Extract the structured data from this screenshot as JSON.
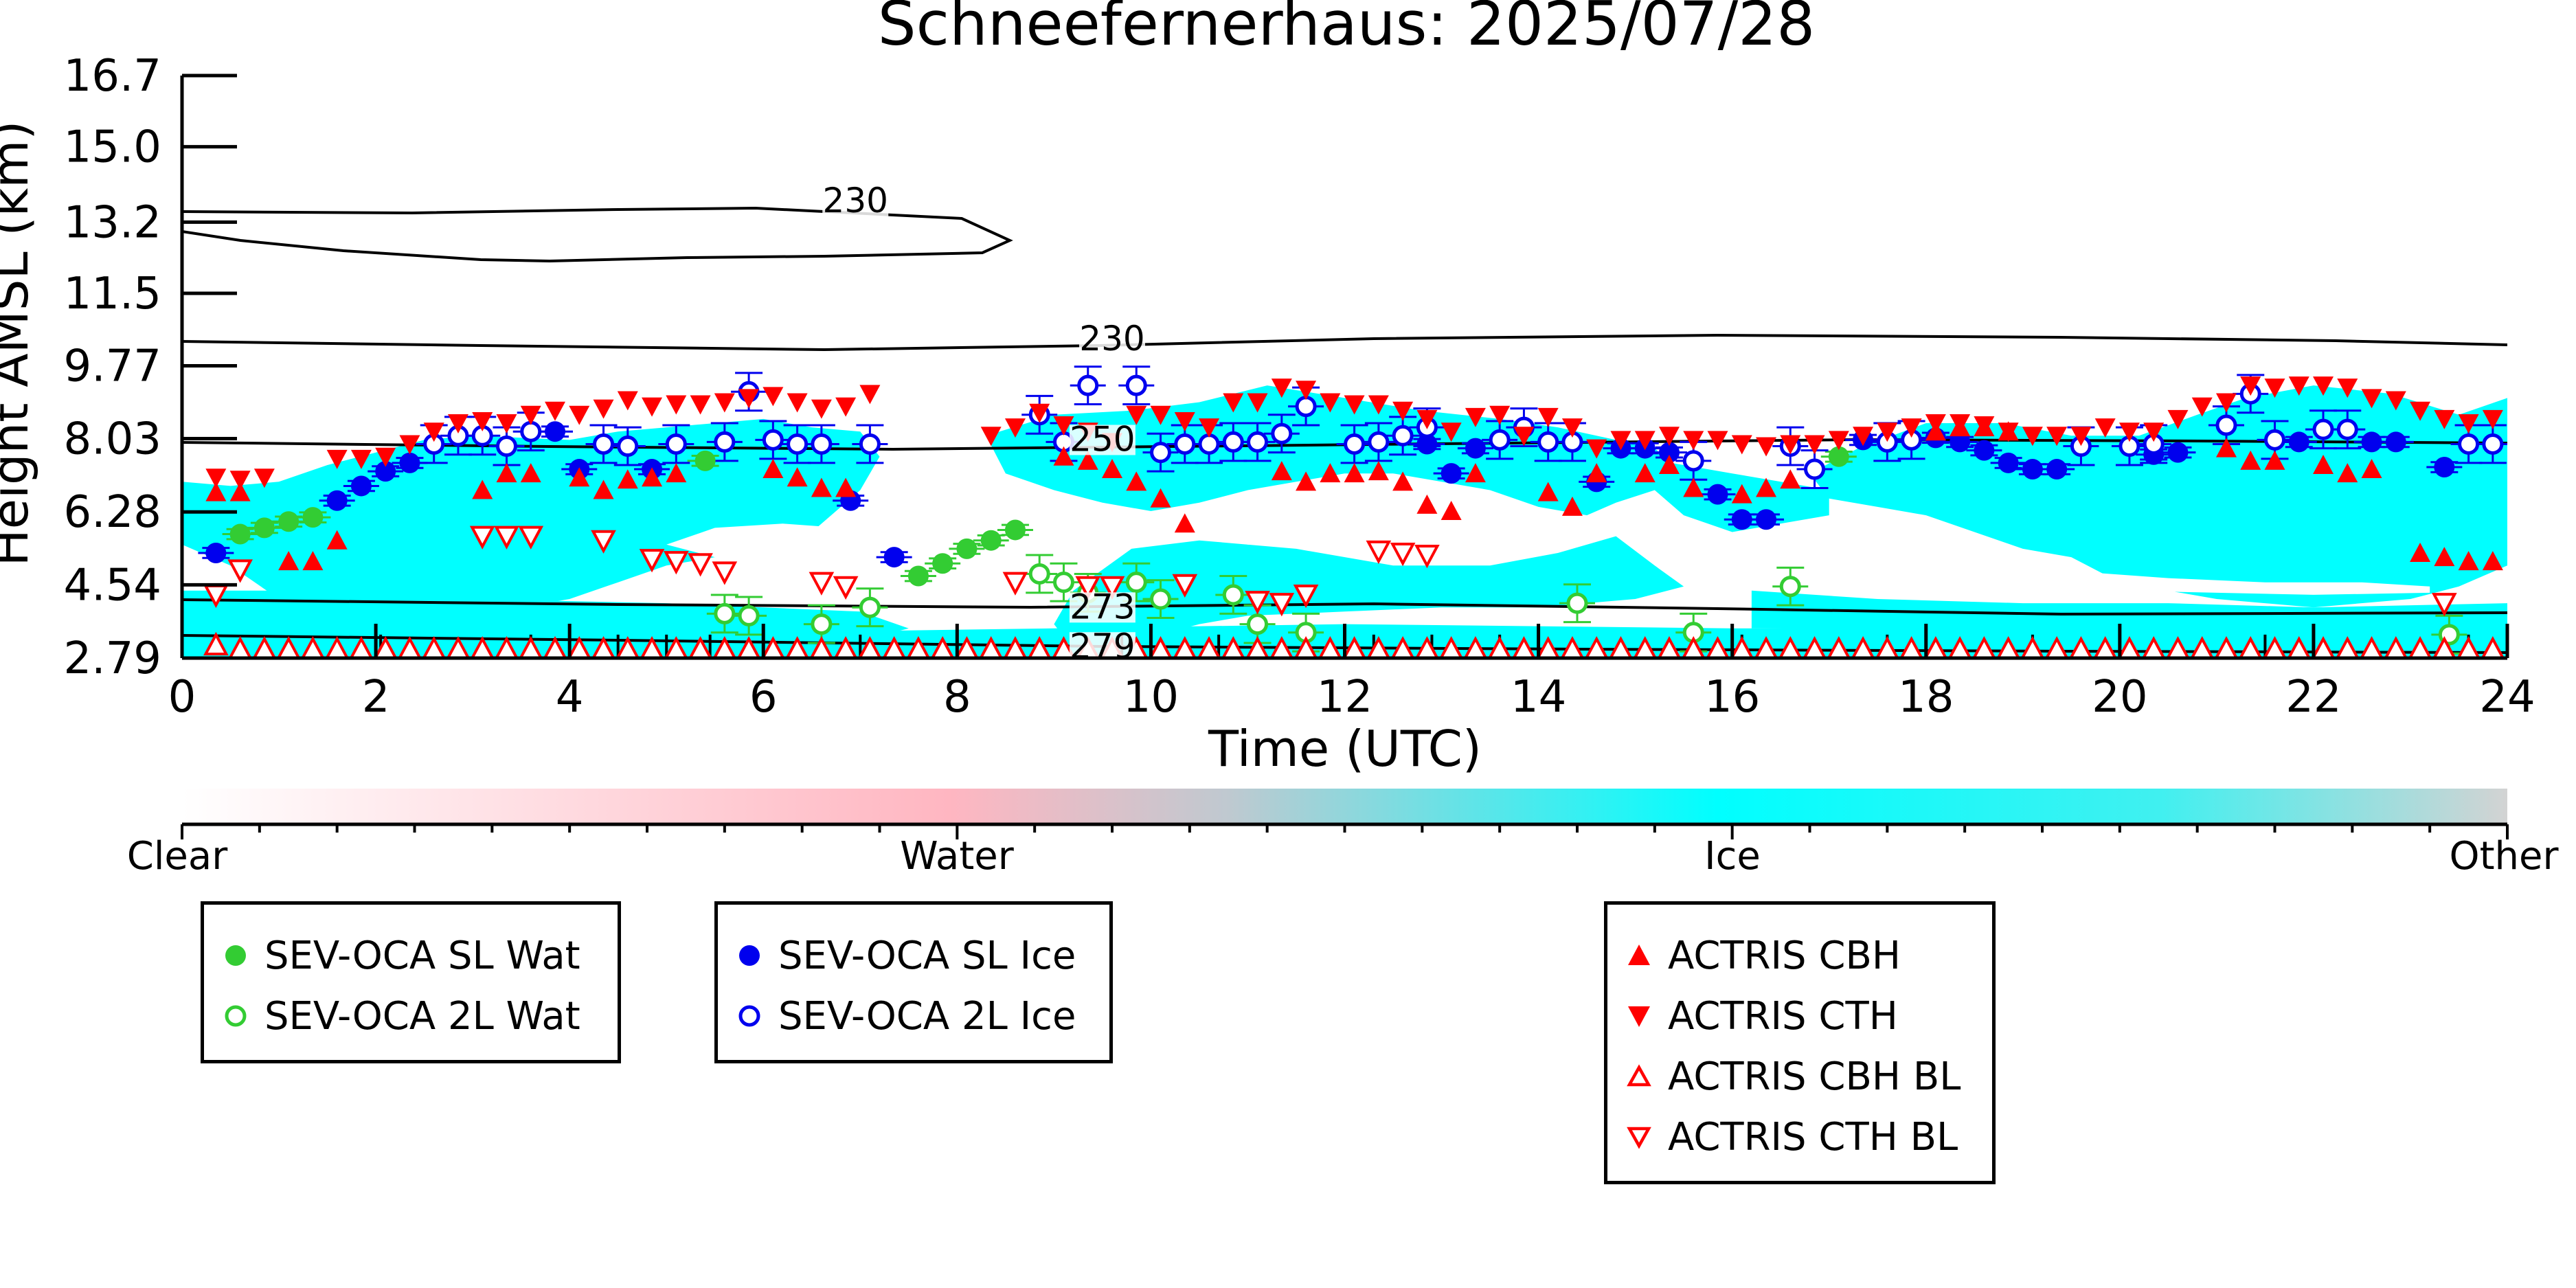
{
  "chart_data": {
    "type": "scatter",
    "title": "Schneefernerhaus: 2025/07/28",
    "xlabel": "Time (UTC)",
    "ylabel": "Height AMSL (km)",
    "xlim": [
      0,
      24
    ],
    "ylim": [
      2.79,
      16.7
    ],
    "xticks": [
      0,
      2,
      4,
      6,
      8,
      10,
      12,
      14,
      16,
      18,
      20,
      22,
      24
    ],
    "yticks": [
      2.79,
      4.54,
      6.28,
      8.03,
      9.77,
      11.5,
      13.2,
      15.0,
      16.7
    ],
    "ytick_labels": [
      "2.79",
      "4.54",
      "6.28",
      "8.03",
      "9.77",
      "11.5",
      "13.2",
      "15.0",
      "16.7"
    ],
    "colorbar": {
      "labels": [
        "Clear",
        "Water",
        "Ice",
        "Other"
      ],
      "colors": [
        "#ffffff",
        "#ffb6c1",
        "#00ffff",
        "#d3d3d3"
      ]
    },
    "cloud_fill_color": "#00ffff",
    "contours": [
      {
        "label": "230",
        "label_x": 6.95,
        "label_y": 13.6
      },
      {
        "label": "230",
        "label_x": 9.6,
        "label_y": 10.3
      },
      {
        "label": "250",
        "label_x": 9.5,
        "label_y": 7.9
      },
      {
        "label": "273",
        "label_x": 9.5,
        "label_y": 3.9
      },
      {
        "label": "279",
        "label_x": 9.5,
        "label_y": 2.95
      }
    ],
    "series": [
      {
        "name": "SEV-OCA SL Wat",
        "marker": "circle",
        "filled": true,
        "color": "#33cc33",
        "x": [
          0.6,
          0.85,
          1.1,
          1.35,
          5.4,
          7.6,
          7.85,
          8.1,
          8.35,
          8.6,
          17.1
        ],
        "y": [
          5.75,
          5.9,
          6.05,
          6.15,
          7.5,
          4.75,
          5.05,
          5.4,
          5.6,
          5.85,
          7.6
        ]
      },
      {
        "name": "SEV-OCA 2L Wat",
        "marker": "circle",
        "filled": false,
        "color": "#33cc33",
        "x": [
          5.6,
          5.85,
          6.6,
          7.1,
          8.85,
          9.1,
          9.35,
          9.85,
          10.1,
          10.85,
          11.1,
          11.6,
          14.4,
          15.6,
          16.6,
          23.4
        ],
        "y": [
          3.85,
          3.8,
          3.6,
          4.0,
          4.8,
          4.6,
          4.35,
          4.6,
          4.2,
          4.3,
          3.6,
          3.4,
          4.1,
          3.4,
          4.5,
          3.35
        ]
      },
      {
        "name": "SEV-OCA SL Ice",
        "marker": "circle",
        "filled": true,
        "color": "#0000ee",
        "x": [
          0.35,
          1.6,
          1.85,
          2.1,
          2.35,
          3.85,
          4.1,
          4.85,
          6.9,
          7.35,
          12.85,
          13.1,
          13.35,
          14.6,
          14.85,
          15.1,
          15.35,
          15.85,
          16.1,
          16.35,
          17.35,
          18.1,
          18.35,
          18.6,
          18.85,
          19.1,
          19.35,
          20.35,
          20.6,
          21.85,
          22.6,
          22.85,
          23.35
        ],
        "y": [
          5.3,
          6.55,
          6.9,
          7.25,
          7.45,
          8.2,
          7.3,
          7.3,
          6.55,
          5.2,
          7.9,
          7.2,
          7.8,
          7.0,
          7.8,
          7.8,
          7.7,
          6.7,
          6.1,
          6.1,
          8.0,
          8.05,
          7.95,
          7.75,
          7.45,
          7.3,
          7.3,
          7.65,
          7.7,
          7.95,
          7.95,
          7.95,
          7.35
        ]
      },
      {
        "name": "SEV-OCA 2L Ice",
        "marker": "circle",
        "filled": false,
        "color": "#0000ee",
        "x": [
          2.6,
          2.85,
          3.1,
          3.35,
          3.6,
          4.35,
          4.6,
          5.1,
          5.6,
          5.85,
          6.1,
          6.35,
          6.6,
          7.1,
          8.85,
          9.1,
          9.35,
          9.85,
          10.1,
          10.35,
          10.6,
          10.85,
          11.1,
          11.35,
          11.6,
          12.1,
          12.35,
          12.6,
          12.85,
          13.6,
          13.85,
          14.1,
          14.35,
          15.6,
          16.6,
          16.85,
          17.6,
          17.85,
          19.6,
          20.1,
          20.35,
          21.1,
          21.35,
          21.6,
          22.1,
          22.35,
          23.6,
          23.85
        ],
        "y": [
          7.9,
          8.1,
          8.1,
          7.85,
          8.2,
          7.9,
          7.85,
          7.9,
          7.95,
          9.15,
          8.0,
          7.9,
          7.9,
          7.9,
          8.6,
          7.95,
          9.3,
          9.3,
          7.7,
          7.9,
          7.9,
          7.95,
          7.95,
          8.15,
          8.8,
          7.9,
          7.95,
          8.1,
          8.3,
          8.0,
          8.3,
          7.95,
          7.95,
          7.5,
          7.85,
          7.3,
          7.95,
          8.0,
          7.85,
          7.85,
          7.9,
          8.35,
          9.1,
          8.0,
          8.25,
          8.25,
          7.9,
          7.9
        ]
      },
      {
        "name": "ACTRIS CBH",
        "marker": "triangle-up",
        "filled": true,
        "color": "#ff0000",
        "x": [
          0.35,
          0.6,
          1.1,
          1.35,
          1.6,
          3.1,
          3.35,
          3.6,
          4.1,
          4.35,
          4.6,
          4.85,
          5.1,
          6.1,
          6.35,
          6.6,
          6.85,
          9.1,
          9.35,
          9.6,
          9.85,
          10.1,
          10.35,
          11.35,
          11.6,
          11.85,
          12.1,
          12.35,
          12.6,
          12.85,
          13.1,
          13.35,
          14.1,
          14.35,
          14.6,
          15.1,
          15.35,
          15.6,
          16.1,
          16.35,
          16.6,
          18.1,
          18.35,
          18.6,
          18.85,
          21.1,
          21.35,
          21.6,
          22.1,
          22.35,
          22.6,
          23.1,
          23.35,
          23.6,
          23.85
        ],
        "y": [
          6.75,
          6.75,
          5.1,
          5.1,
          5.6,
          6.8,
          7.2,
          7.2,
          7.1,
          6.8,
          7.05,
          7.1,
          7.2,
          7.3,
          7.1,
          6.85,
          6.85,
          7.6,
          7.5,
          7.3,
          7.0,
          6.6,
          6.0,
          7.25,
          7.0,
          7.2,
          7.2,
          7.25,
          7.0,
          6.45,
          6.3,
          7.2,
          6.75,
          6.4,
          7.2,
          7.2,
          7.4,
          6.85,
          6.7,
          6.85,
          7.05,
          8.2,
          8.3,
          8.3,
          8.2,
          7.8,
          7.5,
          7.5,
          7.4,
          7.2,
          7.3,
          5.3,
          5.2,
          5.1,
          5.1
        ]
      },
      {
        "name": "ACTRIS CTH",
        "marker": "triangle-down",
        "filled": true,
        "color": "#ff0000",
        "x": [
          0.35,
          0.6,
          0.85,
          1.6,
          1.85,
          2.1,
          2.35,
          2.6,
          2.85,
          3.1,
          3.35,
          3.6,
          3.85,
          4.1,
          4.35,
          4.6,
          4.85,
          5.1,
          5.35,
          5.6,
          5.85,
          6.1,
          6.35,
          6.6,
          6.85,
          7.1,
          8.35,
          8.6,
          8.85,
          9.1,
          9.35,
          9.6,
          9.85,
          10.1,
          10.35,
          10.6,
          10.85,
          11.1,
          11.35,
          11.6,
          11.85,
          12.1,
          12.35,
          12.6,
          12.85,
          13.1,
          13.35,
          13.6,
          13.85,
          14.1,
          14.35,
          14.6,
          14.85,
          15.1,
          15.35,
          15.6,
          15.85,
          16.1,
          16.35,
          16.6,
          16.85,
          17.1,
          17.35,
          17.6,
          17.85,
          18.1,
          18.35,
          18.6,
          18.85,
          19.1,
          19.35,
          19.6,
          19.85,
          20.1,
          20.35,
          20.6,
          20.85,
          21.1,
          21.35,
          21.6,
          21.85,
          22.1,
          22.35,
          22.6,
          22.85,
          23.1,
          23.35,
          23.6,
          23.85
        ],
        "y": [
          7.1,
          7.05,
          7.1,
          7.55,
          7.55,
          7.6,
          7.9,
          8.2,
          8.4,
          8.45,
          8.4,
          8.6,
          8.7,
          8.6,
          8.75,
          8.95,
          8.8,
          8.85,
          8.85,
          8.9,
          9.0,
          9.05,
          8.9,
          8.75,
          8.8,
          9.1,
          8.1,
          8.3,
          8.65,
          8.35,
          8.2,
          7.95,
          8.6,
          8.6,
          8.45,
          8.3,
          8.9,
          8.9,
          9.25,
          9.2,
          8.9,
          8.85,
          8.85,
          8.7,
          8.5,
          8.2,
          8.55,
          8.6,
          8.1,
          8.55,
          8.3,
          7.8,
          8.0,
          8.0,
          8.1,
          8.0,
          8.0,
          7.9,
          7.85,
          7.9,
          7.9,
          8.0,
          8.1,
          8.2,
          8.3,
          8.4,
          8.4,
          8.35,
          8.2,
          8.1,
          8.1,
          8.1,
          8.3,
          8.2,
          8.2,
          8.5,
          8.8,
          8.9,
          9.3,
          9.25,
          9.3,
          9.3,
          9.25,
          9.0,
          8.95,
          8.7,
          8.5,
          8.4,
          8.5
        ]
      },
      {
        "name": "ACTRIS CBH BL",
        "marker": "triangle-up",
        "filled": false,
        "color": "#ff0000",
        "x": [
          0.35,
          0.6,
          0.85,
          1.1,
          1.35,
          1.6,
          1.85,
          2.1,
          2.35,
          2.6,
          2.85,
          3.1,
          3.35,
          3.6,
          3.85,
          4.1,
          4.35,
          4.6,
          4.85,
          5.1,
          5.35,
          5.6,
          5.85,
          6.1,
          6.35,
          6.6,
          6.85,
          7.1,
          7.35,
          7.6,
          7.85,
          8.1,
          8.35,
          8.6,
          8.85,
          9.1,
          9.35,
          9.6,
          9.85,
          10.1,
          10.35,
          10.6,
          10.85,
          11.1,
          11.35,
          11.6,
          11.85,
          12.1,
          12.35,
          12.6,
          12.85,
          13.1,
          13.35,
          13.6,
          13.85,
          14.1,
          14.35,
          14.6,
          14.85,
          15.1,
          15.35,
          15.6,
          15.85,
          16.1,
          16.35,
          16.6,
          16.85,
          17.1,
          17.35,
          17.6,
          17.85,
          18.1,
          18.35,
          18.6,
          18.85,
          19.1,
          19.35,
          19.6,
          19.85,
          20.1,
          20.35,
          20.6,
          20.85,
          21.1,
          21.35,
          21.6,
          21.85,
          22.1,
          22.35,
          22.6,
          22.85,
          23.1,
          23.35,
          23.6,
          23.85
        ],
        "y": [
          3.1,
          3.0,
          3.0,
          3.0,
          3.0,
          3.0,
          3.0,
          3.0,
          3.0,
          3.0,
          3.0,
          3.0,
          3.0,
          3.0,
          3.0,
          3.0,
          3.0,
          3.0,
          3.0,
          3.0,
          3.0,
          3.0,
          3.0,
          3.0,
          3.0,
          3.0,
          3.0,
          3.0,
          3.0,
          3.0,
          3.0,
          3.0,
          3.0,
          3.0,
          3.0,
          3.0,
          3.0,
          3.0,
          3.0,
          3.0,
          3.0,
          3.0,
          3.0,
          3.0,
          3.0,
          3.0,
          3.0,
          3.0,
          3.0,
          3.0,
          3.0,
          3.0,
          3.0,
          3.0,
          3.0,
          3.0,
          3.0,
          3.0,
          3.0,
          3.0,
          3.0,
          3.0,
          3.0,
          3.0,
          3.0,
          3.0,
          3.0,
          3.0,
          3.0,
          3.0,
          3.0,
          3.0,
          3.0,
          3.0,
          3.0,
          3.0,
          3.0,
          3.0,
          3.0,
          3.0,
          3.0,
          3.0,
          3.0,
          3.0,
          3.0,
          3.0,
          3.0,
          3.0,
          3.0,
          3.0,
          3.0,
          3.0,
          3.0,
          3.0,
          3.0
        ]
      },
      {
        "name": "ACTRIS CTH BL",
        "marker": "triangle-down",
        "filled": false,
        "color": "#ff0000",
        "x": [
          0.35,
          0.6,
          3.1,
          3.35,
          3.6,
          4.35,
          4.85,
          5.1,
          5.35,
          5.6,
          6.6,
          6.85,
          8.6,
          9.35,
          9.6,
          10.35,
          11.1,
          11.35,
          11.6,
          12.35,
          12.6,
          12.85,
          23.35
        ],
        "y": [
          4.3,
          4.9,
          5.7,
          5.7,
          5.7,
          5.6,
          5.15,
          5.1,
          5.05,
          4.85,
          4.6,
          4.5,
          4.6,
          4.5,
          4.5,
          4.55,
          4.15,
          4.1,
          4.3,
          5.35,
          5.3,
          5.25,
          4.1
        ]
      }
    ]
  },
  "legend": {
    "box1": [
      "SEV-OCA SL Wat",
      "SEV-OCA 2L Wat"
    ],
    "box2": [
      "SEV-OCA SL Ice",
      "SEV-OCA 2L Ice"
    ],
    "box3": [
      "ACTRIS CBH",
      "ACTRIS CTH",
      "ACTRIS CBH BL",
      "ACTRIS CTH BL"
    ]
  }
}
